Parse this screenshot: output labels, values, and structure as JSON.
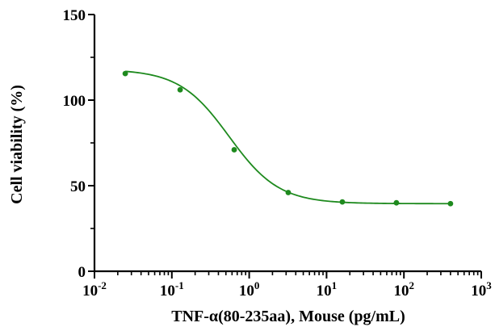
{
  "chart_data": {
    "type": "scatter",
    "xscale": "log",
    "xlim": [
      0.01,
      1000
    ],
    "ylim": [
      0,
      150
    ],
    "yticks": [
      0,
      50,
      100,
      150
    ],
    "xticks": [
      {
        "value": 0.01,
        "base": "10",
        "exp": "-2"
      },
      {
        "value": 0.1,
        "base": "10",
        "exp": "-1"
      },
      {
        "value": 1,
        "base": "10",
        "exp": "0"
      },
      {
        "value": 10,
        "base": "10",
        "exp": "1"
      },
      {
        "value": 100,
        "base": "10",
        "exp": "2"
      },
      {
        "value": 1000,
        "base": "10",
        "exp": "3"
      }
    ],
    "xlabel": "TNF-α(80-235aa), Mouse (pg/mL)",
    "ylabel": "Cell viability (%)",
    "grid": false,
    "color": "#1e8a1e",
    "points": [
      {
        "x": 0.025,
        "y": 115.5
      },
      {
        "x": 0.128,
        "y": 106
      },
      {
        "x": 0.64,
        "y": 71
      },
      {
        "x": 3.2,
        "y": 46
      },
      {
        "x": 16,
        "y": 40.5
      },
      {
        "x": 80,
        "y": 40
      },
      {
        "x": 400,
        "y": 39.5
      }
    ],
    "fit": {
      "model": "4PL",
      "top": 118,
      "bottom": 39.5,
      "ec50": 0.55,
      "hill": 1.35
    }
  }
}
